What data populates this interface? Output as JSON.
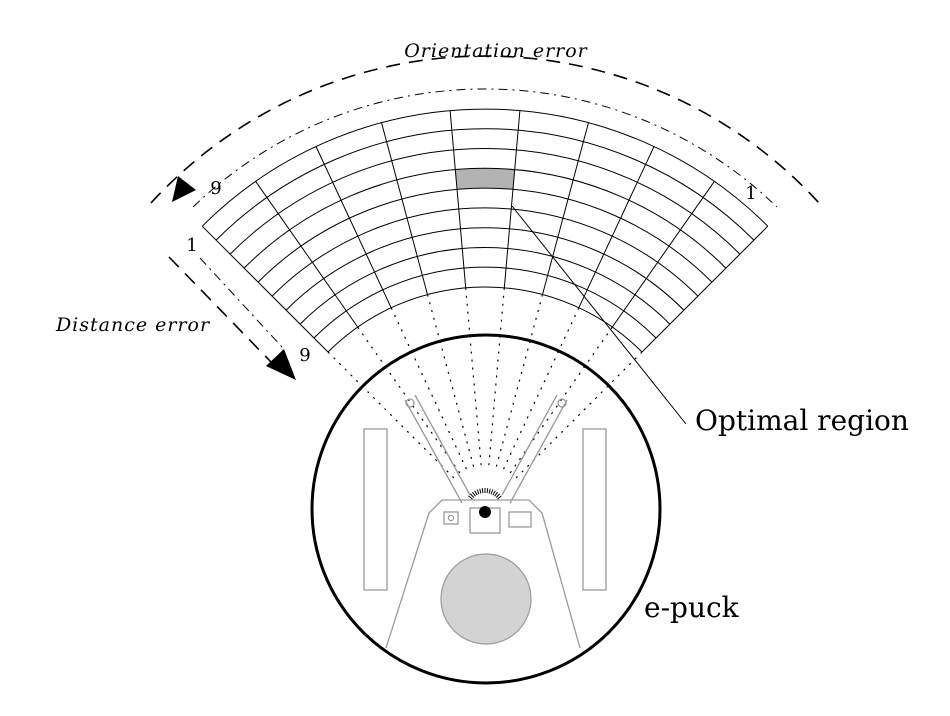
{
  "labels": {
    "orientation_axis": "Orientation error",
    "distance_axis": "Distance error",
    "orientation_start": "9",
    "orientation_end": "1",
    "distance_start": "1",
    "distance_end": "9",
    "optimal_region": "Optimal region",
    "robot_name": "e-puck"
  },
  "grid": {
    "orientation_bins": 9,
    "distance_bins": 9,
    "optimal_cell": {
      "orientation_bin": 5,
      "distance_bin": 4
    }
  },
  "colors": {
    "line": "#000000",
    "highlight": "#b3b3b3",
    "robot_part": "#9a9a9a",
    "robot_body": "#d3d3d3"
  }
}
